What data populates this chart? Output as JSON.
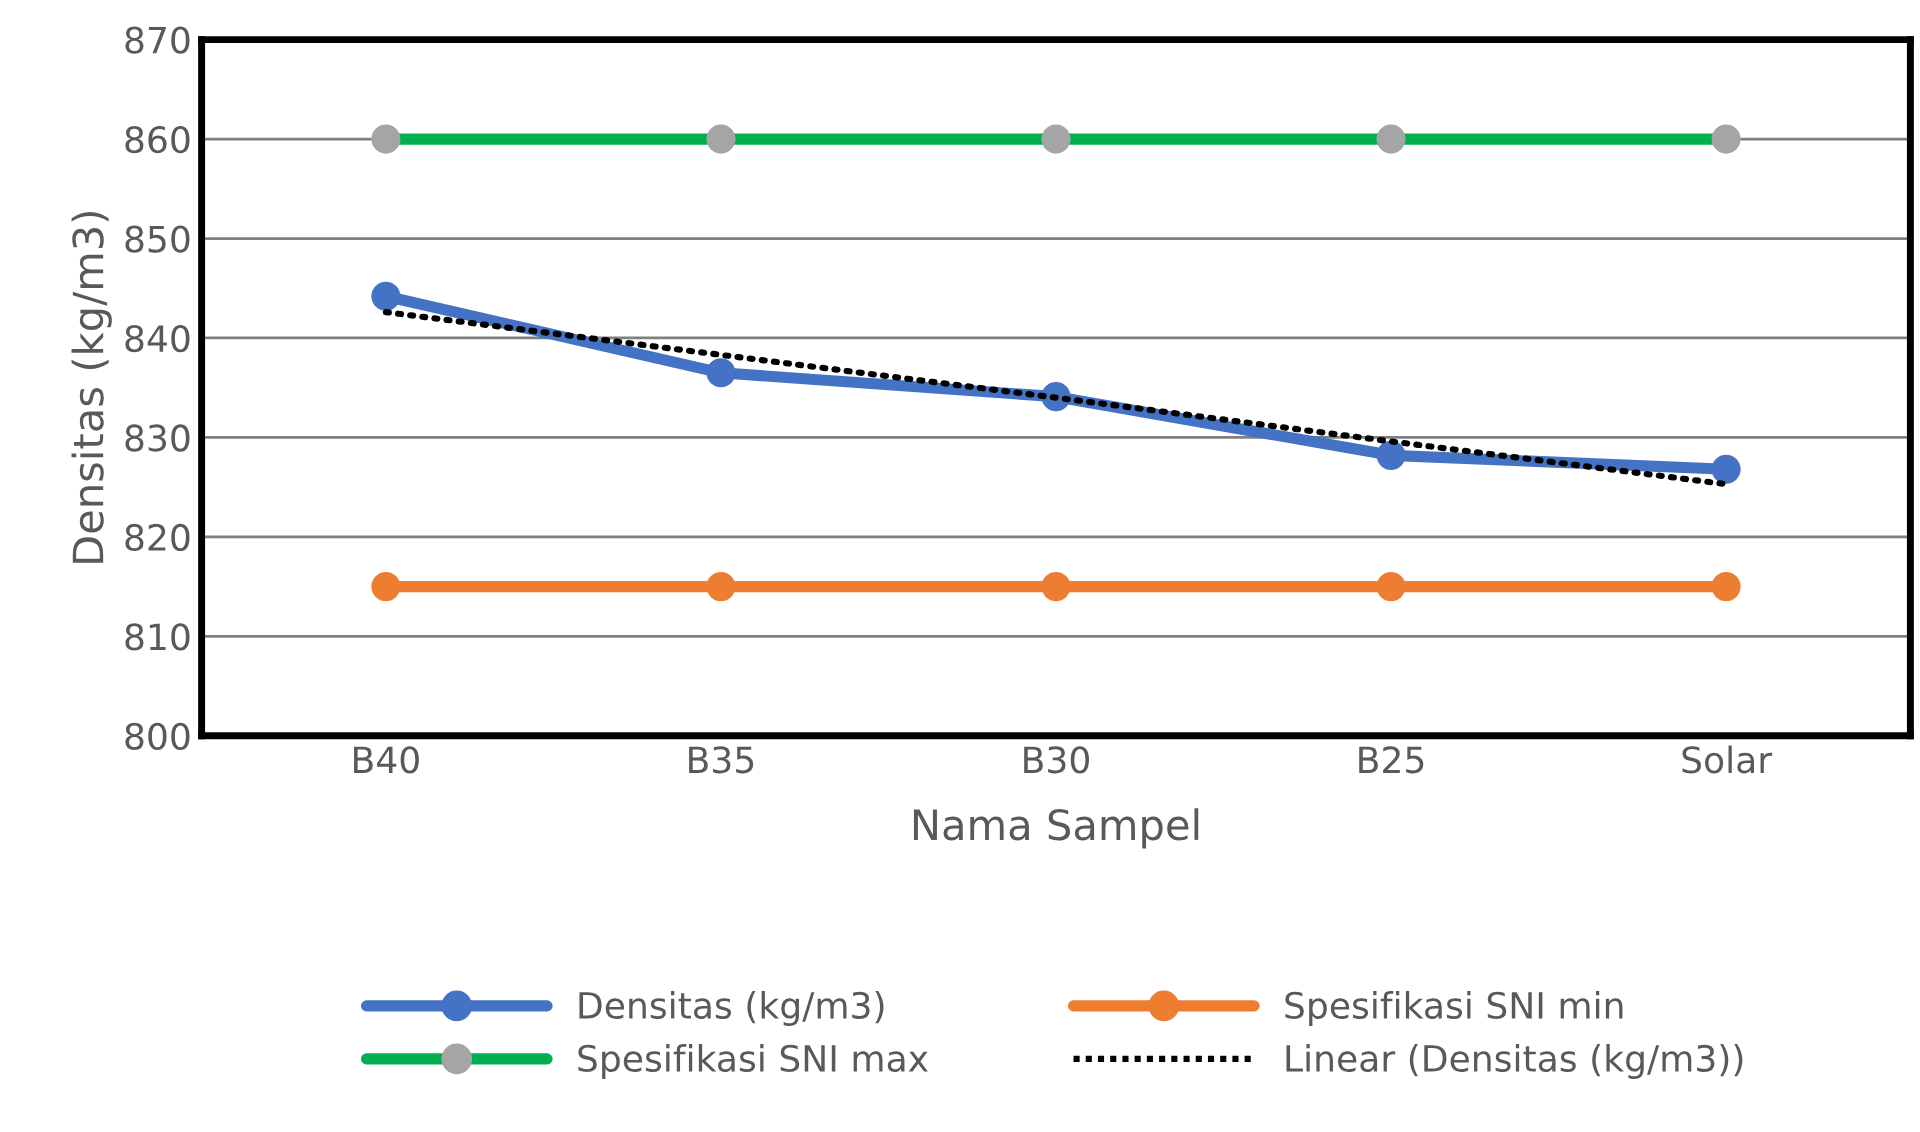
{
  "chart_data": {
    "type": "line",
    "xlabel": "Nama Sampel",
    "ylabel": "Densitas (kg/m3)",
    "categories": [
      "B40",
      "B35",
      "B30",
      "B25",
      "Solar"
    ],
    "series": [
      {
        "name": "Densitas (kg/m3)",
        "color": "#4472c4",
        "values": [
          844.2,
          836.5,
          834.1,
          828.2,
          826.8
        ],
        "marker": "circle"
      },
      {
        "name": "Spesifikasi SNI min",
        "color": "#ed7d31",
        "values": [
          815,
          815,
          815,
          815,
          815
        ],
        "marker": "circle"
      },
      {
        "name": "Spesifikasi SNI max",
        "color": "#00b050",
        "colors": [
          "#a5a5a5",
          "#a5a5a5",
          "#a5a5a5",
          "#a5a5a5",
          "#a5a5a5"
        ],
        "values": [
          860,
          860,
          860,
          860,
          860
        ],
        "marker": "circle"
      },
      {
        "name": "Linear (Densitas (kg/m3))",
        "color": "#000000",
        "values": [
          842.6,
          838.3,
          834.0,
          829.6,
          825.3
        ],
        "marker": "none",
        "line_style": "dotted"
      }
    ],
    "ylim": [
      800,
      870
    ],
    "yticks": [
      800,
      810,
      820,
      830,
      840,
      850,
      860,
      870
    ],
    "grid": "y",
    "legend": "bottom"
  }
}
